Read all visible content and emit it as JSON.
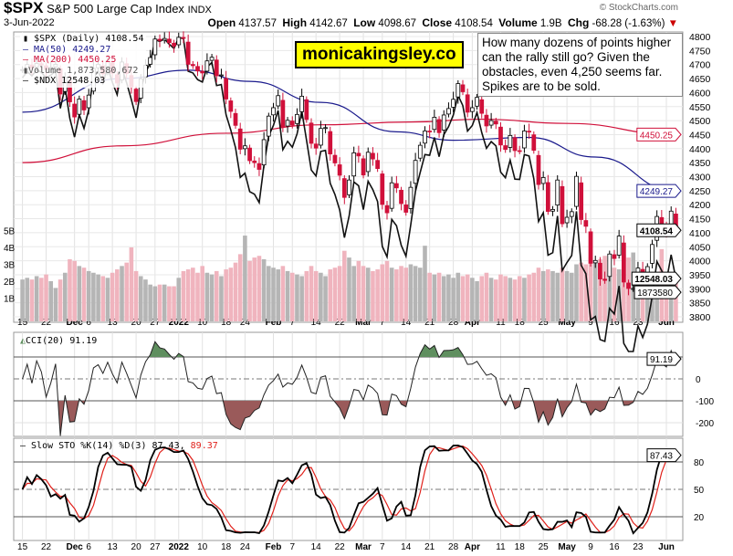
{
  "header": {
    "symbol": "$SPX",
    "name": "S&P 500 Large Cap Index",
    "exchange": "INDX",
    "date": "3-Jun-2022",
    "credit": "© StockCharts.com",
    "open_label": "Open",
    "open": "4137.57",
    "high_label": "High",
    "high": "4142.67",
    "low_label": "Low",
    "low": "4098.67",
    "close_label": "Close",
    "close": "4108.54",
    "volume_label": "Volume",
    "volume": "1.9B",
    "chg_label": "Chg",
    "chg": "-68.28 (-1.63%)"
  },
  "legend": {
    "spx": "$SPX (Daily) 4108.54",
    "ma50": "MA(50) 4249.27",
    "ma200": "MA(200) 4450.25",
    "volume": "Volume 1,873,580,672",
    "ndx": "$NDX 12548.03"
  },
  "brand": "monicakingsley.co",
  "note": "How many dozens of points higher can the rally still go? Given the obstacles, even 4,250 seems far. Spikes are to be sold.",
  "colors": {
    "up": "#ffffff",
    "down": "#d0103a",
    "ma50": "#1a1a8c",
    "ma200": "#d0103a",
    "vol_up": "#b5b5b5",
    "vol_down": "#f0b4be",
    "cci_pos": "#5f8f5f",
    "cci_neg": "#9a5a5a",
    "sto_d": "#e0201a"
  },
  "chart_data": [
    {
      "type": "candlestick",
      "start_date": "2021-11-15",
      "end_date": "2022-06-03",
      "ylim": [
        3800,
        4800
      ],
      "grid": true,
      "yticks": [
        3800,
        3850,
        3900,
        3950,
        4000,
        4050,
        4100,
        4150,
        4200,
        4250,
        4300,
        4350,
        4400,
        4450,
        4500,
        4550,
        4600,
        4650,
        4700,
        4750,
        4800
      ],
      "volume_ticks": [
        "1B",
        "2B",
        "3B",
        "4B",
        "5B"
      ],
      "xticks": [
        {
          "label": "15",
          "date": "2021-11-15"
        },
        {
          "label": "22",
          "date": "2021-11-22"
        },
        {
          "label": "Dec",
          "date": "2021-12-01",
          "bold": true
        },
        {
          "label": "6",
          "date": "2021-12-06"
        },
        {
          "label": "13",
          "date": "2021-12-13"
        },
        {
          "label": "20",
          "date": "2021-12-20"
        },
        {
          "label": "27",
          "date": "2021-12-27"
        },
        {
          "label": "2022",
          "date": "2022-01-03",
          "bold": true
        },
        {
          "label": "10",
          "date": "2022-01-10"
        },
        {
          "label": "18",
          "date": "2022-01-18"
        },
        {
          "label": "24",
          "date": "2022-01-24"
        },
        {
          "label": "Feb",
          "date": "2022-02-01",
          "bold": true
        },
        {
          "label": "7",
          "date": "2022-02-07"
        },
        {
          "label": "14",
          "date": "2022-02-14"
        },
        {
          "label": "22",
          "date": "2022-02-22"
        },
        {
          "label": "Mar",
          "date": "2022-03-01",
          "bold": true
        },
        {
          "label": "7",
          "date": "2022-03-07"
        },
        {
          "label": "14",
          "date": "2022-03-14"
        },
        {
          "label": "21",
          "date": "2022-03-21"
        },
        {
          "label": "28",
          "date": "2022-03-28"
        },
        {
          "label": "Apr",
          "date": "2022-04-01",
          "bold": true
        },
        {
          "label": "11",
          "date": "2022-04-11"
        },
        {
          "label": "18",
          "date": "2022-04-18"
        },
        {
          "label": "25",
          "date": "2022-04-25"
        },
        {
          "label": "May",
          "date": "2022-05-02",
          "bold": true
        },
        {
          "label": "9",
          "date": "2022-05-09"
        },
        {
          "label": "16",
          "date": "2022-05-16"
        },
        {
          "label": "23",
          "date": "2022-05-23"
        },
        {
          "label": "Jun",
          "date": "2022-06-01",
          "bold": true
        }
      ],
      "close": [
        4682,
        4700,
        4688,
        4704,
        4698,
        4682,
        4690,
        4701,
        4595,
        4655,
        4567,
        4513,
        4577,
        4538,
        4591,
        4686,
        4701,
        4667,
        4712,
        4669,
        4634,
        4709,
        4668,
        4620,
        4568,
        4649,
        4697,
        4725,
        4791,
        4786,
        4793,
        4778,
        4766,
        4797,
        4794,
        4701,
        4696,
        4677,
        4670,
        4713,
        4726,
        4660,
        4663,
        4577,
        4533,
        4483,
        4398,
        4410,
        4357,
        4350,
        4326,
        4432,
        4516,
        4546,
        4589,
        4477,
        4501,
        4484,
        4522,
        4587,
        4504,
        4419,
        4402,
        4472,
        4475,
        4381,
        4349,
        4305,
        4226,
        4288,
        4385,
        4374,
        4306,
        4387,
        4363,
        4329,
        4201,
        4171,
        4278,
        4260,
        4204,
        4173,
        4262,
        4358,
        4412,
        4463,
        4461,
        4512,
        4457,
        4520,
        4543,
        4576,
        4632,
        4603,
        4530,
        4546,
        4583,
        4526,
        4481,
        4500,
        4488,
        4413,
        4397,
        4447,
        4393,
        4392,
        4463,
        4459,
        4394,
        4272,
        4297,
        4176,
        4183,
        4288,
        4132,
        4155,
        4175,
        4301,
        4147,
        4123,
        3991,
        4001,
        3935,
        3930,
        4024,
        4008,
        4088,
        3924,
        3901,
        3901,
        3974,
        3941,
        3979,
        4058,
        4158,
        4132,
        4101,
        4177,
        4109
      ],
      "volume_b": [
        2.1,
        2.2,
        2.1,
        2.3,
        2.2,
        2.4,
        2.0,
        1.6,
        2.1,
        2.5,
        3.3,
        3.2,
        2.9,
        2.8,
        2.6,
        2.5,
        2.4,
        2.3,
        2.2,
        2.5,
        2.7,
        2.9,
        3.1,
        4.0,
        2.6,
        2.3,
        2.1,
        1.8,
        1.7,
        1.8,
        1.8,
        1.7,
        1.7,
        2.2,
        2.6,
        2.7,
        2.8,
        2.5,
        2.9,
        2.5,
        2.4,
        2.6,
        2.3,
        2.7,
        2.8,
        3.1,
        3.6,
        4.7,
        3.2,
        3.4,
        3.5,
        3.3,
        2.9,
        2.8,
        2.7,
        2.9,
        2.6,
        2.5,
        2.4,
        2.3,
        2.6,
        2.9,
        2.6,
        2.5,
        2.3,
        2.7,
        2.8,
        2.9,
        3.8,
        3.4,
        2.9,
        3.2,
        2.9,
        2.8,
        2.6,
        2.7,
        3.0,
        3.2,
        2.8,
        2.7,
        2.9,
        2.8,
        3.0,
        2.9,
        2.8,
        4.1,
        2.5,
        2.4,
        2.5,
        2.3,
        2.4,
        2.2,
        2.5,
        2.3,
        2.4,
        2.2,
        2.0,
        2.3,
        2.5,
        2.2,
        2.1,
        2.4,
        2.3,
        2.2,
        2.1,
        2.3,
        2.2,
        2.4,
        2.5,
        2.8,
        2.6,
        2.7,
        2.6,
        2.5,
        2.8,
        2.6,
        2.5,
        3.0,
        3.1,
        3.0,
        3.4,
        3.2,
        3.3,
        3.5,
        3.2,
        2.8,
        2.7,
        3.6,
        3.4,
        3.7,
        2.6,
        2.5,
        2.6,
        2.5,
        2.3,
        3.9,
        2.1,
        2.0,
        1.9
      ],
      "ma50": {
        "last": 4249.27,
        "key_points": [
          {
            "date": "2021-11-15",
            "value": 4530
          },
          {
            "date": "2021-12-15",
            "value": 4650
          },
          {
            "date": "2022-01-05",
            "value": 4680
          },
          {
            "date": "2022-01-25",
            "value": 4640
          },
          {
            "date": "2022-02-15",
            "value": 4565
          },
          {
            "date": "2022-03-10",
            "value": 4460
          },
          {
            "date": "2022-03-28",
            "value": 4430
          },
          {
            "date": "2022-04-20",
            "value": 4440
          },
          {
            "date": "2022-05-10",
            "value": 4370
          },
          {
            "date": "2022-06-03",
            "value": 4249.27
          }
        ]
      },
      "ma200": {
        "last": 4450.25,
        "key_points": [
          {
            "date": "2021-11-15",
            "value": 4350
          },
          {
            "date": "2021-12-15",
            "value": 4410
          },
          {
            "date": "2022-01-15",
            "value": 4455
          },
          {
            "date": "2022-02-15",
            "value": 4485
          },
          {
            "date": "2022-03-15",
            "value": 4495
          },
          {
            "date": "2022-04-05",
            "value": 4505
          },
          {
            "date": "2022-05-01",
            "value": 4490
          },
          {
            "date": "2022-06-03",
            "value": 4450.25
          }
        ]
      },
      "ndx_last": "12548.03",
      "volume_last": "1873580",
      "last_labels": {
        "price": "4108.54",
        "ma50": "4249.27",
        "ma200": "4450.25"
      }
    },
    {
      "type": "line",
      "title": "CCI(20) 91.19",
      "last": "91.19",
      "yticks": [
        "0",
        "-100",
        "-200"
      ],
      "levels": [
        100,
        0,
        -100,
        -200
      ]
    },
    {
      "type": "line",
      "title_k": "Slow STO %K(14) %D(3) 87.43,",
      "title_d": "89.37",
      "last": "87.43",
      "yticks": [
        "80",
        "50",
        "20"
      ]
    }
  ]
}
